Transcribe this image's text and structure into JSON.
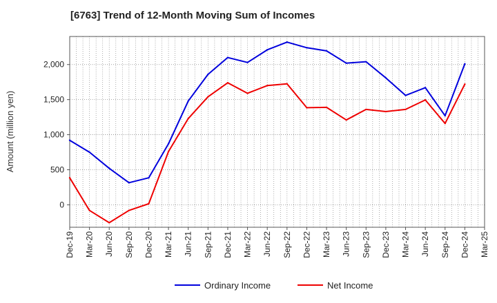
{
  "chart_data": {
    "type": "line",
    "title": "[6763]  Trend of 12-Month Moving Sum of Incomes",
    "xlabel": "",
    "ylabel": "Amount (million yen)",
    "categories": [
      "Dec-19",
      "Mar-20",
      "Jun-20",
      "Sep-20",
      "Dec-20",
      "Mar-21",
      "Jun-21",
      "Sep-21",
      "Dec-21",
      "Mar-22",
      "Jun-22",
      "Sep-22",
      "Dec-22",
      "Mar-23",
      "Jun-23",
      "Sep-23",
      "Dec-23",
      "Mar-24",
      "Jun-24",
      "Sep-24",
      "Dec-24",
      "Mar-25"
    ],
    "ylim": [
      -320,
      2400
    ],
    "yticks": [
      0,
      500,
      1000,
      1500,
      2000
    ],
    "ytick_labels": [
      "0",
      "500",
      "1,000",
      "1,500",
      "2,000"
    ],
    "grid": true,
    "legend_position": "bottom-center",
    "series": [
      {
        "name": "Ordinary Income",
        "color": "#0000dd",
        "values": [
          920,
          750,
          520,
          315,
          385,
          870,
          1480,
          1860,
          2100,
          2030,
          2210,
          2320,
          2240,
          2195,
          2020,
          2040,
          1810,
          1560,
          1670,
          1270,
          2010,
          null
        ]
      },
      {
        "name": "Net Income",
        "color": "#ee0000",
        "values": [
          385,
          -80,
          -255,
          -80,
          15,
          760,
          1230,
          1540,
          1740,
          1590,
          1700,
          1725,
          1385,
          1390,
          1210,
          1360,
          1330,
          1360,
          1495,
          1160,
          1720,
          null
        ]
      }
    ]
  }
}
